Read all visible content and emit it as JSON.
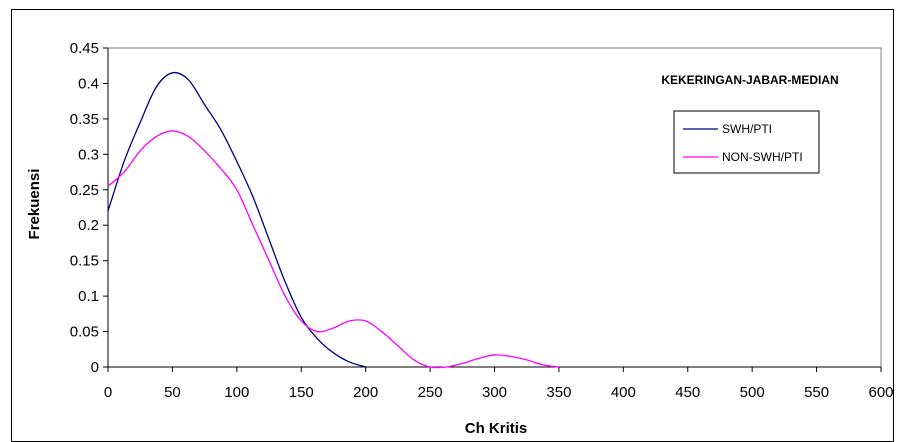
{
  "chart_data": {
    "type": "line",
    "title": "KEKERINGAN-JABAR-MEDIAN",
    "xlabel": "Ch Kritis",
    "ylabel": "Frekuensi",
    "xlim": [
      0,
      600
    ],
    "ylim": [
      0,
      0.45
    ],
    "xticks": [
      0,
      50,
      100,
      150,
      200,
      250,
      300,
      350,
      400,
      450,
      500,
      550,
      600
    ],
    "yticks": [
      0,
      0.05,
      0.1,
      0.15,
      0.2,
      0.25,
      0.3,
      0.35,
      0.4,
      0.45
    ],
    "ytick_labels": [
      "0",
      "0.05",
      "0.1",
      "0.15",
      "0.2",
      "0.25",
      "0.3",
      "0.35",
      "0.4",
      "0.45"
    ],
    "grid": false,
    "legend_position": "top-right",
    "series": [
      {
        "name": "SWH/PTI",
        "color": "#000080",
        "x": [
          0,
          12.5,
          25,
          37.5,
          50,
          62.5,
          75,
          87.5,
          100,
          112.5,
          125,
          137.5,
          150,
          162.5,
          175,
          187.5,
          200
        ],
        "y": [
          0.22,
          0.29,
          0.345,
          0.395,
          0.415,
          0.405,
          0.37,
          0.335,
          0.29,
          0.24,
          0.18,
          0.12,
          0.07,
          0.04,
          0.02,
          0.007,
          0
        ]
      },
      {
        "name": "NON-SWH/PTI",
        "color": "#FF00FF",
        "x": [
          0,
          12.5,
          25,
          37.5,
          50,
          62.5,
          75,
          87.5,
          100,
          112.5,
          125,
          137.5,
          150,
          162.5,
          175,
          187.5,
          200,
          212.5,
          225,
          237.5,
          250,
          262.5,
          275,
          287.5,
          300,
          312.5,
          325,
          337.5,
          350
        ],
        "y": [
          0.255,
          0.275,
          0.305,
          0.325,
          0.333,
          0.325,
          0.305,
          0.28,
          0.25,
          0.2,
          0.15,
          0.1,
          0.065,
          0.05,
          0.055,
          0.065,
          0.065,
          0.05,
          0.03,
          0.01,
          0,
          0,
          0.005,
          0.012,
          0.017,
          0.015,
          0.01,
          0.003,
          0
        ]
      }
    ]
  }
}
